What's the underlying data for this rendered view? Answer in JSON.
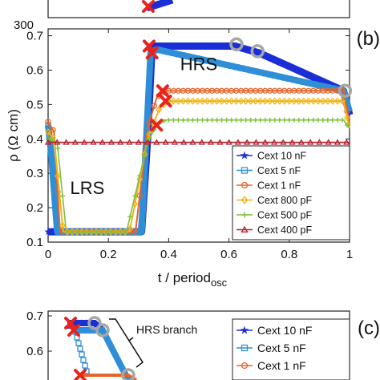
{
  "top_panel": {
    "tick_label": "300"
  },
  "chart_data": [
    {
      "type": "line",
      "panel_label": "(b)",
      "xlabel": "t / period",
      "xlabel_sub": "osc",
      "ylabel": "ρ (Ω cm)",
      "xlim": [
        0,
        1
      ],
      "ylim": [
        0.1,
        0.72
      ],
      "x_ticks": [
        0,
        0.2,
        0.4,
        0.6,
        0.8,
        1
      ],
      "x_tick_labels": [
        "0",
        "0.2",
        "0.4",
        "0.6",
        "0.8",
        "1"
      ],
      "y_ticks": [
        0.1,
        0.2,
        0.3,
        0.4,
        0.5,
        0.6,
        0.7
      ],
      "y_tick_labels": [
        "0.1",
        "0.2",
        "0.3",
        "0.4",
        "0.5",
        "0.6",
        "0.7"
      ],
      "annotations": [
        {
          "text": "HRS",
          "x": 0.5,
          "y": 0.6
        },
        {
          "text": "LRS",
          "x": 0.13,
          "y": 0.24
        }
      ],
      "legend_position": "lower-right",
      "series": [
        {
          "name": "Cext 10 nF",
          "color": "#1a2fd6",
          "marker": "star",
          "x": [
            0,
            0.02,
            0.31,
            0.33,
            0.345,
            0.62,
            0.7,
            0.98,
            1.0
          ],
          "y": [
            0.13,
            0.13,
            0.13,
            0.4,
            0.67,
            0.67,
            0.65,
            0.54,
            0.47
          ]
        },
        {
          "name": "Cext 5 nF",
          "color": "#2f8fd6",
          "marker": "square",
          "x": [
            0,
            0.01,
            0.03,
            0.31,
            0.34,
            0.36,
            0.98,
            1.0
          ],
          "y": [
            0.44,
            0.36,
            0.13,
            0.13,
            0.65,
            0.66,
            0.54,
            0.48
          ]
        },
        {
          "name": "Cext 1 nF",
          "color": "#e8632a",
          "marker": "circle",
          "x": [
            0,
            0.02,
            0.04,
            0.29,
            0.33,
            0.36,
            0.39,
            0.98,
            1.0
          ],
          "y": [
            0.45,
            0.42,
            0.13,
            0.13,
            0.43,
            0.52,
            0.54,
            0.54,
            0.44
          ]
        },
        {
          "name": "Cext 800 pF",
          "color": "#f2b418",
          "marker": "diamond",
          "x": [
            0,
            0.02,
            0.05,
            0.27,
            0.33,
            0.37,
            0.4,
            0.98,
            1.0
          ],
          "y": [
            0.42,
            0.4,
            0.13,
            0.13,
            0.4,
            0.49,
            0.51,
            0.51,
            0.43
          ]
        },
        {
          "name": "Cext 500 pF",
          "color": "#7cc13b",
          "marker": "plus",
          "x": [
            0,
            0.03,
            0.06,
            0.26,
            0.33,
            0.36,
            0.39,
            0.98,
            1.0
          ],
          "y": [
            0.4,
            0.39,
            0.13,
            0.13,
            0.39,
            0.44,
            0.455,
            0.455,
            0.43
          ]
        },
        {
          "name": "Cext 400 pF",
          "color": "#b5222c",
          "marker": "triangle",
          "x": [
            0,
            0.1,
            0.2,
            0.3,
            0.4,
            0.5,
            0.6,
            0.7,
            0.8,
            0.9,
            1.0
          ],
          "y": [
            0.39,
            0.39,
            0.39,
            0.39,
            0.39,
            0.39,
            0.39,
            0.39,
            0.39,
            0.39,
            0.39
          ]
        }
      ],
      "red_x_markers": [
        {
          "x": 0.335,
          "y": 0.67
        },
        {
          "x": 0.345,
          "y": 0.65
        },
        {
          "x": 0.38,
          "y": 0.54
        },
        {
          "x": 0.39,
          "y": 0.51
        },
        {
          "x": 0.36,
          "y": 0.44
        }
      ],
      "gray_circle_markers": [
        {
          "x": 0.625,
          "y": 0.675
        },
        {
          "x": 0.695,
          "y": 0.655
        },
        {
          "x": 0.985,
          "y": 0.54
        }
      ]
    },
    {
      "type": "line",
      "panel_label": "(c)",
      "ylim": [
        0.5,
        0.72
      ],
      "y_ticks": [
        0.6,
        0.7
      ],
      "y_tick_labels": [
        "0.6",
        "0.7"
      ],
      "annotations": [
        {
          "text": "HRS branch"
        }
      ],
      "legend_position": "top-right",
      "series": [
        {
          "name": "Cext 10 nF",
          "color": "#1a2fd6",
          "marker": "star"
        },
        {
          "name": "Cext 5 nF",
          "color": "#2f8fd6",
          "marker": "square"
        },
        {
          "name": "Cext 1 nF",
          "color": "#e8632a",
          "marker": "circle"
        }
      ]
    }
  ]
}
